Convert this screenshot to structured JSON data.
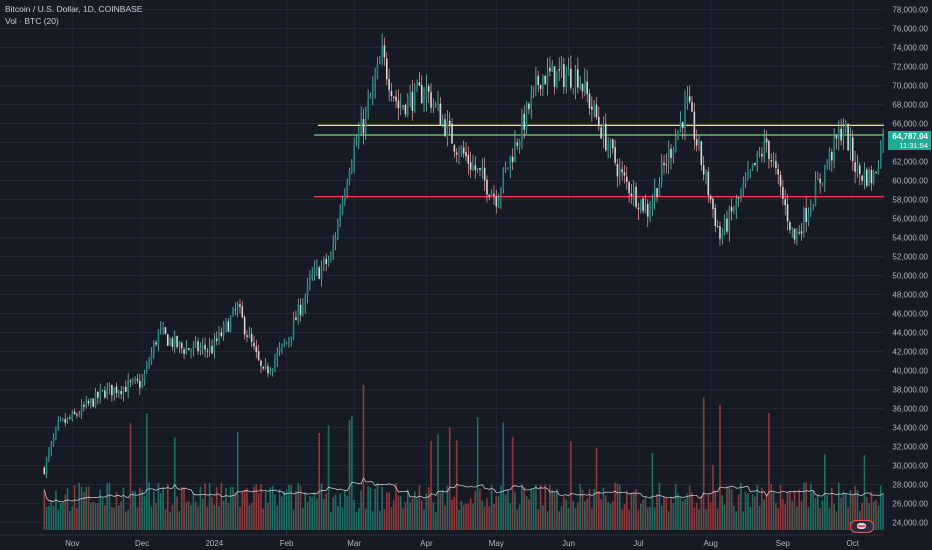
{
  "header": {
    "title": "Bitcoin / U.S. Dollar, 1D, COINBASE",
    "volume_label": "Vol · BTC (20)"
  },
  "price_axis": {
    "labels": [
      "78,000.00",
      "76,000.00",
      "74,000.00",
      "72,000.00",
      "70,000.00",
      "68,000.00",
      "66,000.00",
      "62,000.00",
      "60,000.00",
      "58,000.00",
      "56,000.00",
      "54,000.00",
      "52,000.00",
      "50,000.00",
      "48,000.00",
      "46,000.00",
      "44,000.00",
      "42,000.00",
      "40,000.00",
      "38,000.00",
      "36,000.00",
      "34,000.00",
      "32,000.00",
      "30,000.00",
      "28,000.00",
      "26,000.00",
      "24,000.00"
    ],
    "current_price": "64,787.04",
    "countdown": "11:31:54"
  },
  "time_axis": {
    "labels": [
      "Nov",
      "Dec",
      "2024",
      "Feb",
      "Mar",
      "Apr",
      "May",
      "Jun",
      "Jul",
      "Aug",
      "Sep",
      "Oct"
    ]
  },
  "colors": {
    "background": "#161a25",
    "up": "#26a69a",
    "down": "#ef5350",
    "support_line": "#f23645",
    "resistance_line_yellow": "#f0e68c",
    "resistance_line_green": "#7bd46a",
    "volume_ma": "#e0e3eb"
  },
  "chart_data": {
    "type": "candlestick",
    "symbol": "BTC/USD",
    "interval": "1D",
    "ylim": [
      23000,
      79000
    ],
    "points": [
      {
        "date": "2023-10-20",
        "close": 29700
      },
      {
        "date": "2023-10-26",
        "close": 34200
      },
      {
        "date": "2023-11-01",
        "close": 35000
      },
      {
        "date": "2023-11-15",
        "close": 37800
      },
      {
        "date": "2023-12-01",
        "close": 38700
      },
      {
        "date": "2023-12-08",
        "close": 44000
      },
      {
        "date": "2023-12-18",
        "close": 42300
      },
      {
        "date": "2023-12-31",
        "close": 42300
      },
      {
        "date": "2024-01-11",
        "close": 46500
      },
      {
        "date": "2024-01-22",
        "close": 39500
      },
      {
        "date": "2024-02-01",
        "close": 43000
      },
      {
        "date": "2024-02-12",
        "close": 49800
      },
      {
        "date": "2024-02-20",
        "close": 51800
      },
      {
        "date": "2024-02-28",
        "close": 62000
      },
      {
        "date": "2024-03-05",
        "close": 66000
      },
      {
        "date": "2024-03-13",
        "close": 73000
      },
      {
        "date": "2024-03-20",
        "close": 67800
      },
      {
        "date": "2024-04-01",
        "close": 69500
      },
      {
        "date": "2024-04-13",
        "close": 64000
      },
      {
        "date": "2024-05-01",
        "close": 58300
      },
      {
        "date": "2024-05-20",
        "close": 71000
      },
      {
        "date": "2024-06-05",
        "close": 71100
      },
      {
        "date": "2024-06-24",
        "close": 60300
      },
      {
        "date": "2024-07-05",
        "close": 56800
      },
      {
        "date": "2024-07-22",
        "close": 68000
      },
      {
        "date": "2024-08-05",
        "close": 54000
      },
      {
        "date": "2024-08-25",
        "close": 64000
      },
      {
        "date": "2024-09-06",
        "close": 53800
      },
      {
        "date": "2024-09-27",
        "close": 65800
      },
      {
        "date": "2024-10-03",
        "close": 60800
      },
      {
        "date": "2024-10-10",
        "close": 60300
      },
      {
        "date": "2024-10-14",
        "close": 64787.04
      }
    ],
    "horizontal_lines": [
      {
        "price": 65800,
        "color": "yellow"
      },
      {
        "price": 64787.04,
        "color": "green"
      },
      {
        "price": 58300,
        "color": "red"
      }
    ],
    "volume_scale_label": "Vol · BTC (20)",
    "grid": true
  }
}
